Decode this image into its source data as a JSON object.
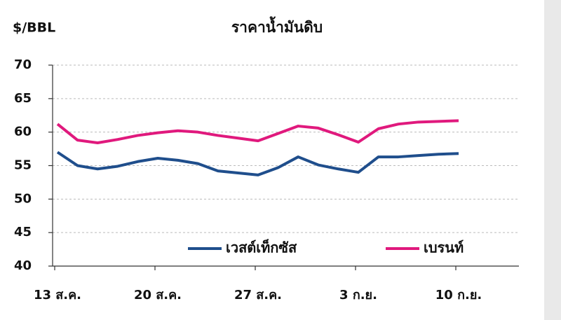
{
  "chart_data": {
    "type": "line",
    "title": "ราคาน้ำมันดิบ",
    "y_label": "$/BBL",
    "categories": [
      "13 ส.ค.",
      null,
      null,
      null,
      null,
      "20 ส.ค.",
      null,
      null,
      null,
      null,
      "27 ส.ค.",
      null,
      null,
      null,
      null,
      "3 ก.ย.",
      null,
      null,
      null,
      null,
      "10 ก.ย."
    ],
    "series": [
      {
        "name": "เวสต์เท็กซัส",
        "color": "#1f4e8c",
        "values": [
          57.0,
          55.0,
          54.5,
          54.9,
          55.6,
          56.1,
          55.8,
          55.3,
          54.2,
          53.9,
          53.6,
          54.7,
          56.3,
          55.1,
          54.5,
          54.0,
          56.3,
          56.3,
          56.5,
          56.7,
          56.8
        ]
      },
      {
        "name": "เบรนท์",
        "color": "#e0197d",
        "values": [
          61.2,
          58.8,
          58.4,
          58.9,
          59.5,
          59.9,
          60.2,
          60.0,
          59.5,
          59.1,
          58.7,
          59.8,
          60.9,
          60.6,
          59.6,
          58.5,
          60.5,
          61.2,
          61.5,
          61.6,
          61.7
        ]
      }
    ],
    "ylim": [
      40,
      70
    ],
    "yticks": [
      40,
      45,
      50,
      55,
      60,
      65,
      70
    ],
    "grid": true
  }
}
